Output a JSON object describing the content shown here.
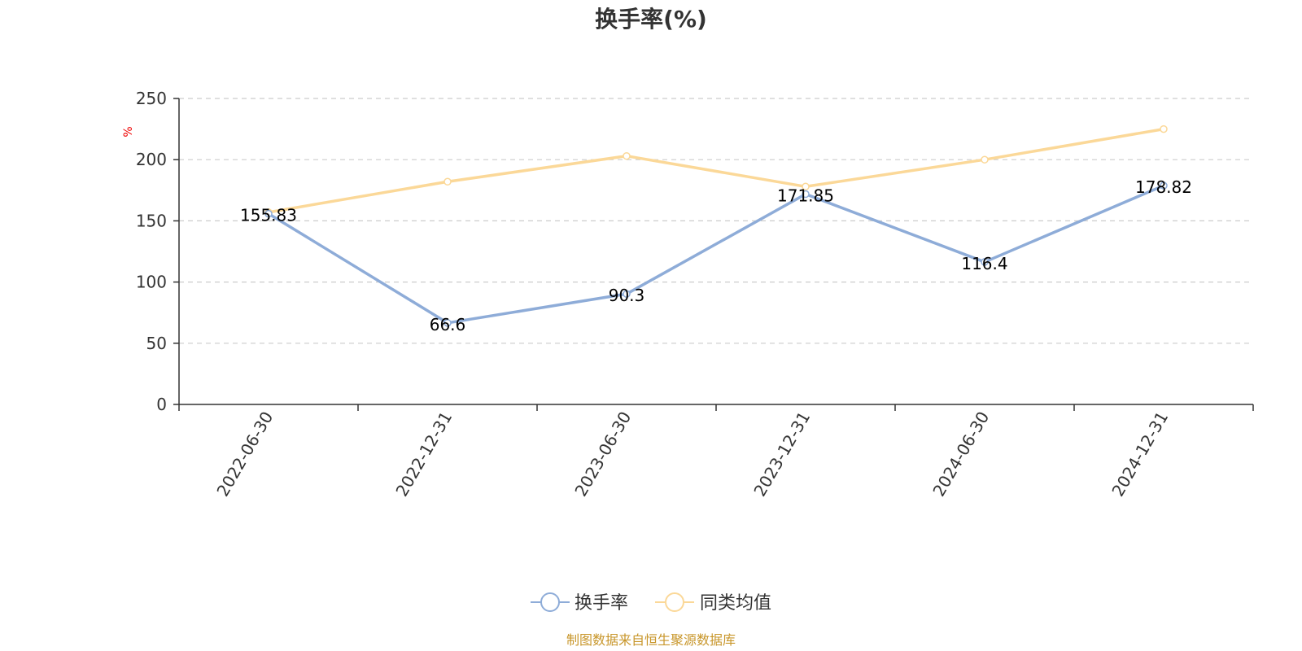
{
  "chart_data": {
    "type": "line",
    "title": "换手率(%)",
    "ylabel": "%",
    "categories": [
      "2022-06-30",
      "2022-12-31",
      "2023-06-30",
      "2023-12-31",
      "2024-06-30",
      "2024-12-31"
    ],
    "ylim": [
      0,
      250
    ],
    "yticks": [
      0,
      50,
      100,
      150,
      200,
      250
    ],
    "grid": true,
    "legend_position": "bottom-center",
    "series": [
      {
        "name": "换手率",
        "color": "#8eacd8",
        "values": [
          155.83,
          66.6,
          90.3,
          171.85,
          116.4,
          178.82
        ],
        "labels": [
          "155.83",
          "66.6",
          "90.3",
          "171.85",
          "116.4",
          "178.82"
        ]
      },
      {
        "name": "同类均值",
        "color": "#fbd898",
        "values": [
          157,
          182,
          203,
          178,
          200,
          225
        ]
      }
    ]
  },
  "source_text": "制图数据来自恒生聚源数据库"
}
